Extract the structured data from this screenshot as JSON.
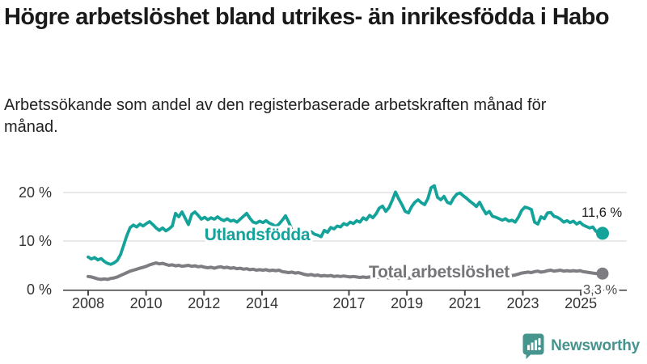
{
  "header": {
    "title": "Högre arbetslöshet bland utrikes- än inrikesfödda i Habo",
    "subtitle": "Arbetssökande som andel av den registerbaserade arbetskraften månad för månad."
  },
  "colors": {
    "foreign_born_line": "#13a39a",
    "total_line": "#7e7e82",
    "gridline": "#dcdcdc",
    "axis": "#4a4a4a",
    "axis_label": "#333333",
    "end_label_dark": "#1a1a1a",
    "end_label_gray": "#4d4d4d",
    "brand_teal": "#46948e"
  },
  "chart_data": {
    "type": "line",
    "title": "",
    "xlabel": "",
    "ylabel": "",
    "unit": "%",
    "x_range": [
      2008.0,
      2025.75
    ],
    "ylim": [
      0,
      22
    ],
    "grid": "horizontal-only",
    "y_axis": {
      "ticks": [
        {
          "value": 0,
          "label": "0 %"
        },
        {
          "value": 10,
          "label": "10 %"
        },
        {
          "value": 20,
          "label": "20 %"
        }
      ],
      "grid_values": [
        10,
        20
      ]
    },
    "x_axis": {
      "ticks": [
        {
          "year": 2008,
          "label": "2008"
        },
        {
          "year": 2010,
          "label": "2010"
        },
        {
          "year": 2012,
          "label": "2012"
        },
        {
          "year": 2014,
          "label": "2014"
        },
        {
          "year": 2017,
          "label": "2017"
        },
        {
          "year": 2019,
          "label": "2019"
        },
        {
          "year": 2021,
          "label": "2021"
        },
        {
          "year": 2023,
          "label": "2023"
        },
        {
          "year": 2025,
          "label": "2025"
        }
      ]
    },
    "series": [
      {
        "id": "utlandsfodda",
        "name": "Utlandsfödda",
        "color": "#13a39a",
        "end_value": 11.6,
        "end_label": "11,6 %",
        "values": [
          6.7,
          6.3,
          6.6,
          6.1,
          6.4,
          5.8,
          5.4,
          5.2,
          5.5,
          6.0,
          7.2,
          9.2,
          11.2,
          12.8,
          13.3,
          12.9,
          13.5,
          13.1,
          13.6,
          14.0,
          13.4,
          12.7,
          12.2,
          12.7,
          12.1,
          12.5,
          13.1,
          15.7,
          15.0,
          16.0,
          14.7,
          13.4,
          15.5,
          16.0,
          15.3,
          14.5,
          14.9,
          14.4,
          14.8,
          14.5,
          15.0,
          14.5,
          14.2,
          14.6,
          14.1,
          14.3,
          13.9,
          14.5,
          15.1,
          15.7,
          14.7,
          13.9,
          13.7,
          14.1,
          13.8,
          14.2,
          13.7,
          13.4,
          13.0,
          13.5,
          14.3,
          15.2,
          13.9,
          12.3,
          12.0,
          12.4,
          11.7,
          12.1,
          11.6,
          11.9,
          11.4,
          11.2,
          10.9,
          12.2,
          11.8,
          12.8,
          12.5,
          13.1,
          12.9,
          13.6,
          13.3,
          13.9,
          13.6,
          14.2,
          13.9,
          14.8,
          14.4,
          15.3,
          14.8,
          15.6,
          16.8,
          17.2,
          16.1,
          16.9,
          18.4,
          20.1,
          18.7,
          17.5,
          16.1,
          15.8,
          17.1,
          18.0,
          18.5,
          17.9,
          17.5,
          18.7,
          21.0,
          21.4,
          19.0,
          18.5,
          19.2,
          18.0,
          17.7,
          18.9,
          19.7,
          19.9,
          19.3,
          18.8,
          18.2,
          17.7,
          17.1,
          18.0,
          16.7,
          15.6,
          16.1,
          15.1,
          14.9,
          14.6,
          14.3,
          14.6,
          14.1,
          14.3,
          13.9,
          14.9,
          16.3,
          17.0,
          16.8,
          16.5,
          13.9,
          13.5,
          15.0,
          14.6,
          15.8,
          15.9,
          15.1,
          14.9,
          14.5,
          13.9,
          14.2,
          13.8,
          14.1,
          13.5,
          13.9,
          13.3,
          13.0,
          12.7,
          12.9,
          12.0,
          11.9,
          11.6
        ]
      },
      {
        "id": "total",
        "name": "Total arbetslöshet",
        "color": "#7e7e82",
        "end_value": 3.3,
        "end_label": "3,3 %",
        "values": [
          2.7,
          2.6,
          2.4,
          2.2,
          2.1,
          2.2,
          2.1,
          2.3,
          2.4,
          2.6,
          2.9,
          3.2,
          3.5,
          3.8,
          4.0,
          4.2,
          4.4,
          4.6,
          4.8,
          5.1,
          5.3,
          5.5,
          5.3,
          5.4,
          5.2,
          5.0,
          5.1,
          4.9,
          5.0,
          4.8,
          4.9,
          5.0,
          4.8,
          4.9,
          4.7,
          4.8,
          4.6,
          4.5,
          4.6,
          4.4,
          4.6,
          4.7,
          4.5,
          4.6,
          4.4,
          4.5,
          4.3,
          4.4,
          4.2,
          4.3,
          4.1,
          4.2,
          4.0,
          4.1,
          4.0,
          4.1,
          3.9,
          4.0,
          3.9,
          4.0,
          3.7,
          3.6,
          3.5,
          3.6,
          3.4,
          3.5,
          3.3,
          3.1,
          3.0,
          3.1,
          2.9,
          3.0,
          2.8,
          2.9,
          2.8,
          2.9,
          2.7,
          2.8,
          2.7,
          2.8,
          2.7,
          2.6,
          2.7,
          2.6,
          2.5,
          2.6,
          2.5,
          2.6,
          2.5,
          2.6,
          2.5,
          2.4,
          2.5,
          2.4,
          2.5,
          2.4,
          2.3,
          2.4,
          2.3,
          2.4,
          2.4,
          2.5,
          2.4,
          2.5,
          2.6,
          2.5,
          2.6,
          2.8,
          3.0,
          3.2,
          3.4,
          3.5,
          3.6,
          3.5,
          3.6,
          3.5,
          3.6,
          3.5,
          3.4,
          3.5,
          3.4,
          3.3,
          3.2,
          3.1,
          3.0,
          2.9,
          2.8,
          2.9,
          2.8,
          2.9,
          2.8,
          2.9,
          3.0,
          3.2,
          3.4,
          3.5,
          3.6,
          3.5,
          3.7,
          3.8,
          3.6,
          3.7,
          3.9,
          4.0,
          3.8,
          3.9,
          4.0,
          3.8,
          3.9,
          3.8,
          3.9,
          3.8,
          3.9,
          3.7,
          3.6,
          3.5,
          3.4,
          3.3,
          3.4,
          3.3
        ]
      }
    ],
    "legend_position": "inline-labels-on-lines"
  },
  "footer": {
    "brand": "Newsworthy",
    "logo_icon": "bar-chart-speech-bubble"
  }
}
